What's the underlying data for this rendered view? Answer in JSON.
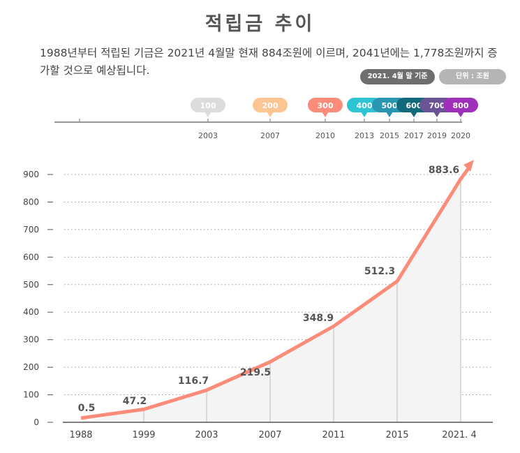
{
  "title": "적립금 추이",
  "description": "1988년부터 적립된 기금은 2021년 4월말 현재 884조원에 이르며, 2041년에는 1,778조원까지 증가할 것으로 예상됩니다.",
  "badges": {
    "basis": "2021. 4월 말 기준",
    "unit": "단위 : 조원"
  },
  "timeline": [
    {
      "year": "2003",
      "value": "100",
      "color": "#dcdcdc"
    },
    {
      "year": "2007",
      "value": "200",
      "color": "#fdc592"
    },
    {
      "year": "2010",
      "value": "300",
      "color": "#fb8c79"
    },
    {
      "year": "2013",
      "value": "400",
      "color": "#2ec4d3"
    },
    {
      "year": "2015",
      "value": "500",
      "color": "#2a95b0"
    },
    {
      "year": "2017",
      "value": "600",
      "color": "#11697a"
    },
    {
      "year": "2019",
      "value": "700",
      "color": "#6a5495"
    },
    {
      "year": "2020",
      "value": "800",
      "color": "#a02fbb"
    }
  ],
  "chart_data": {
    "type": "area",
    "categories": [
      "1988",
      "1999",
      "2003",
      "2007",
      "2011",
      "2015",
      "2021. 4"
    ],
    "values": [
      0.5,
      47.2,
      116.7,
      219.5,
      348.9,
      512.3,
      883.6
    ],
    "labels": [
      "0.5",
      "47.2",
      "116.7",
      "219.5",
      "348.9",
      "512.3",
      "883.6"
    ],
    "yticks": [
      0,
      100,
      200,
      300,
      400,
      500,
      600,
      700,
      800,
      900
    ],
    "ylim": [
      0,
      900
    ],
    "grid": true,
    "line_color": "#fb8c79",
    "fill_color": "#f4f4f4"
  }
}
